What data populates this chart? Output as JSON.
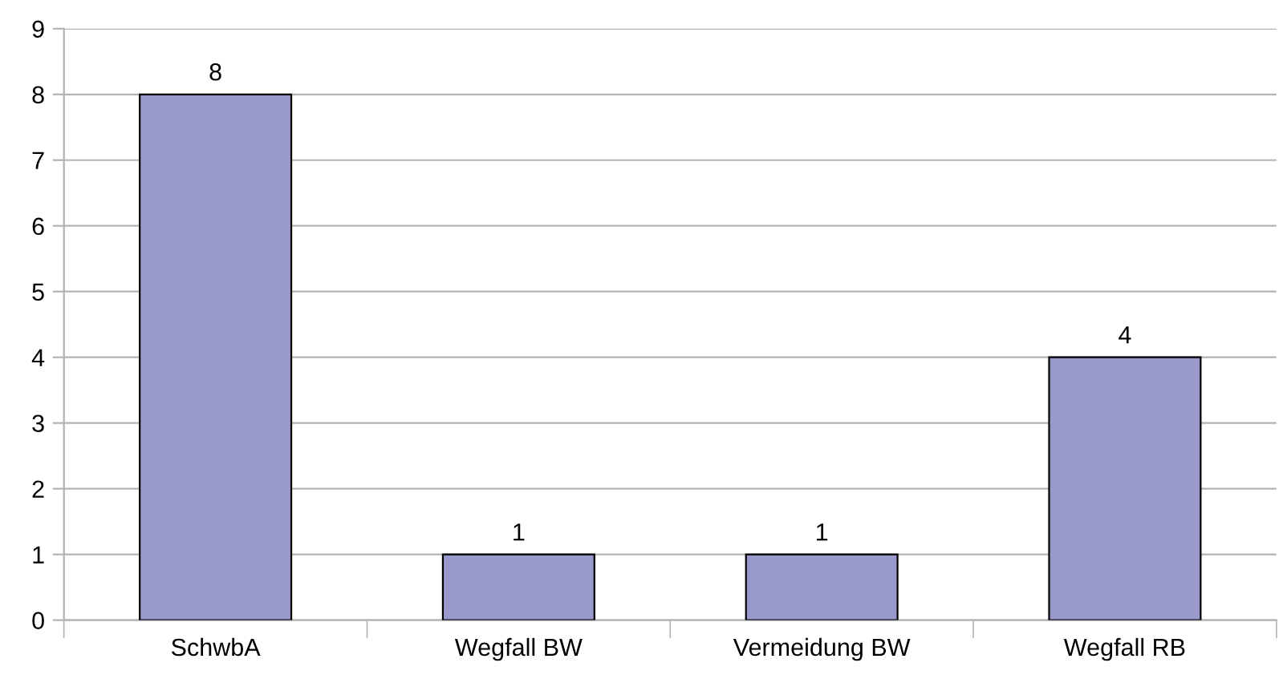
{
  "chart_data": {
    "type": "bar",
    "categories": [
      "SchwbA",
      "Wegfall BW",
      "Vermeidung BW",
      "Wegfall RB"
    ],
    "values": [
      8,
      1,
      1,
      4
    ],
    "color": "#9999cc",
    "ylim": [
      0,
      9
    ],
    "yticks": [
      0,
      1,
      2,
      3,
      4,
      5,
      6,
      7,
      8,
      9
    ],
    "grid": "y",
    "data_labels": true,
    "legend": false
  }
}
